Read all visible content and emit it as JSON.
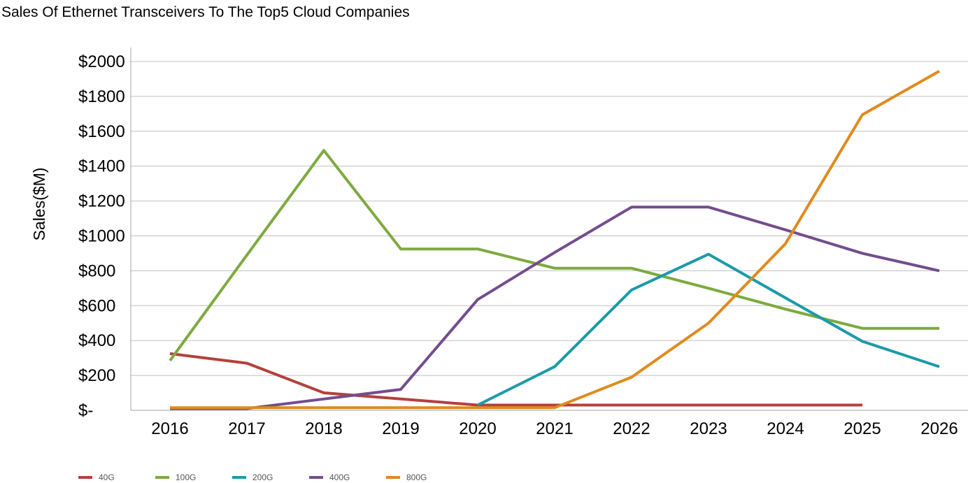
{
  "chart_data": {
    "type": "line",
    "title": "Sales Of Ethernet Transceivers To The Top5 Cloud Companies",
    "ylabel": "Sales($M)",
    "xlabel": "",
    "x": [
      "2016",
      "2017",
      "2018",
      "2019",
      "2020",
      "2021",
      "2022",
      "2023",
      "2024",
      "2025",
      "2026"
    ],
    "ylim": [
      0,
      2000
    ],
    "yticks": [
      0,
      200,
      400,
      600,
      800,
      1000,
      1200,
      1400,
      1600,
      1800,
      2000
    ],
    "ytick_labels": [
      "$-",
      "$200",
      "$400",
      "$600",
      "$800",
      "$1000",
      "$1200",
      "$1400",
      "$1600",
      "$1800",
      "$2000"
    ],
    "grid": "horizontal",
    "legend_position": "bottom-left",
    "series": [
      {
        "name": "40G",
        "color": "#b5403a",
        "values": [
          325,
          270,
          100,
          65,
          30,
          30,
          30,
          30,
          30,
          30,
          null
        ]
      },
      {
        "name": "100G",
        "color": "#7daa3e",
        "values": [
          285,
          890,
          1490,
          925,
          925,
          815,
          815,
          700,
          580,
          470,
          470
        ]
      },
      {
        "name": "200G",
        "color": "#1b9aaa",
        "values": [
          null,
          null,
          null,
          null,
          30,
          250,
          690,
          895,
          645,
          395,
          250
        ]
      },
      {
        "name": "400G",
        "color": "#734d8d",
        "values": [
          10,
          10,
          65,
          120,
          635,
          905,
          1165,
          1165,
          1035,
          900,
          800
        ]
      },
      {
        "name": "800G",
        "color": "#e08a1e",
        "values": [
          15,
          15,
          15,
          15,
          15,
          15,
          190,
          500,
          955,
          1695,
          1945
        ]
      }
    ]
  }
}
